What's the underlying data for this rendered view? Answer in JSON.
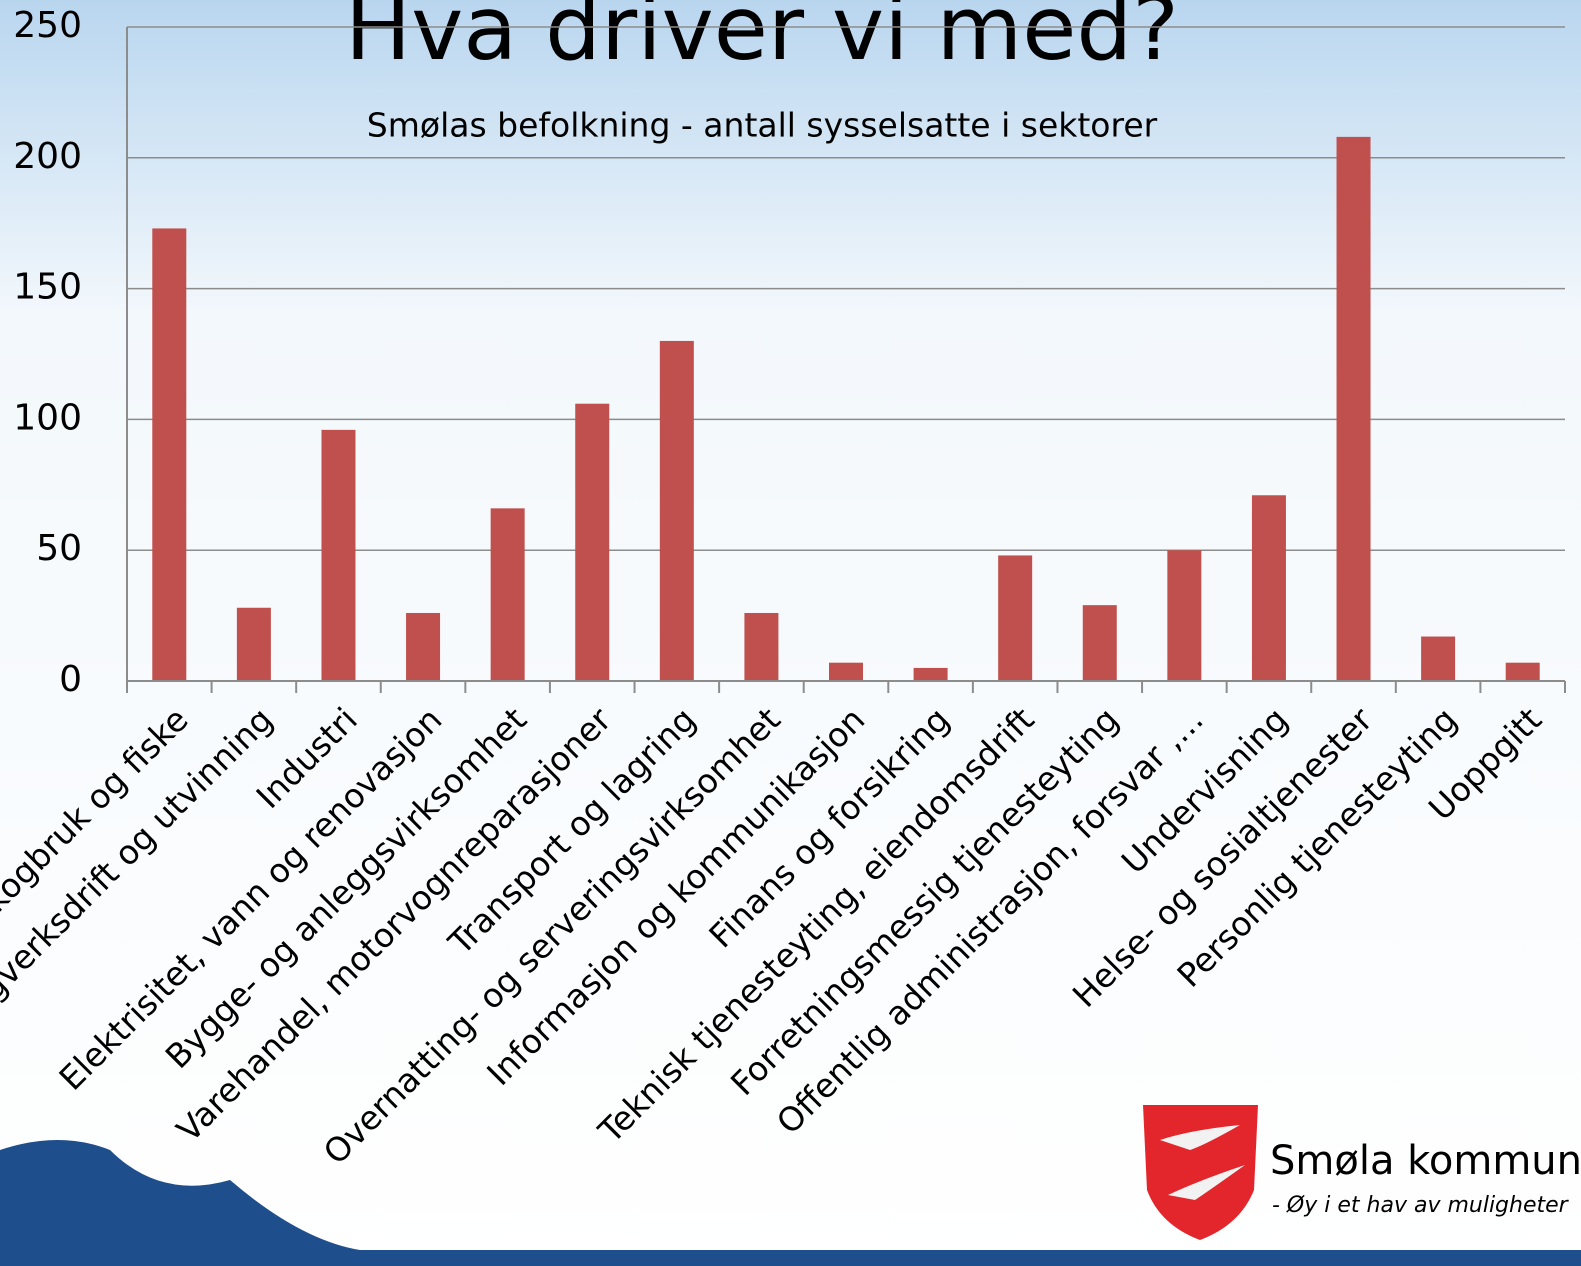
{
  "chart_data": {
    "type": "bar",
    "title": "Hva driver vi med?",
    "subtitle": "Smølas befolkning - antall sysselsatte i sektorer",
    "categories": [
      "Jordbruk, skogbruk og fiske",
      "Bergverksdrift og utvinning",
      "Industri",
      "Elektrisitet, vann og renovasjon",
      "Bygge- og anleggsvirksomhet",
      "Varehandel, motorvognreparasjoner",
      "Transport og lagring",
      "Overnatting- og serveringsvirksomhet",
      "Informasjon og kommunikasjon",
      "Finans og forsikring",
      "Teknisk tjenesteyting, eiendomsdrift",
      "Forretningsmessig tjenesteyting",
      "Offentlig administrasjon, forsvar ,...",
      "Undervisning",
      "Helse- og sosialtjenester",
      "Personlig tjenesteyting",
      "Uoppgitt"
    ],
    "values": [
      173,
      28,
      96,
      26,
      66,
      106,
      130,
      26,
      7,
      5,
      48,
      29,
      50,
      71,
      208,
      17,
      7
    ],
    "color": "#c0504d",
    "ylim": [
      0,
      250
    ],
    "yticks": [
      0,
      50,
      100,
      150,
      200,
      250
    ],
    "grid": true
  },
  "logo": {
    "name": "Smøla kommune",
    "tagline": "- Øy i et hav av muligheter"
  }
}
